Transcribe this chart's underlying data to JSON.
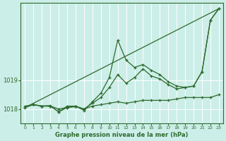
{
  "title": "Graphe pression niveau de la mer (hPa)",
  "background_color": "#cceee8",
  "grid_color": "#ffffff",
  "line_color": "#2d6a2d",
  "xlim": [
    -0.5,
    23.5
  ],
  "ylim": [
    1017.5,
    1021.7
  ],
  "yticks": [
    1018,
    1019
  ],
  "xticks": [
    0,
    1,
    2,
    3,
    4,
    5,
    6,
    7,
    8,
    9,
    10,
    11,
    12,
    13,
    14,
    15,
    16,
    17,
    18,
    19,
    20,
    21,
    22,
    23
  ],
  "series": [
    {
      "x": [
        0,
        23
      ],
      "y": [
        1018.05,
        1021.5
      ]
    },
    {
      "x": [
        0,
        1,
        2,
        3,
        4,
        5,
        6,
        7,
        8,
        9,
        10,
        11,
        12,
        13,
        14,
        15,
        16,
        17,
        18,
        19,
        20,
        21,
        22,
        23
      ],
      "y": [
        1018.05,
        1018.15,
        1018.1,
        1018.1,
        1018.0,
        1018.05,
        1018.08,
        1018.0,
        1018.1,
        1018.15,
        1018.2,
        1018.25,
        1018.2,
        1018.25,
        1018.3,
        1018.3,
        1018.3,
        1018.3,
        1018.35,
        1018.4,
        1018.4,
        1018.4,
        1018.4,
        1018.5
      ]
    },
    {
      "x": [
        0,
        1,
        2,
        3,
        4,
        5,
        6,
        7,
        8,
        9,
        10,
        11,
        12,
        13,
        14,
        15,
        16,
        17,
        18,
        19,
        20,
        21,
        22,
        23
      ],
      "y": [
        1018.1,
        1018.15,
        1018.1,
        1018.1,
        1017.9,
        1018.05,
        1018.1,
        1017.95,
        1018.25,
        1018.55,
        1019.1,
        1020.4,
        1019.7,
        1019.45,
        1019.55,
        1019.35,
        1019.2,
        1018.95,
        1018.8,
        1018.75,
        1018.8,
        1019.3,
        1021.1,
        1021.5
      ]
    },
    {
      "x": [
        1,
        2,
        3,
        4,
        5,
        6,
        7,
        8,
        9,
        10,
        11,
        12,
        13,
        14,
        15,
        16,
        17,
        18,
        19,
        20,
        21,
        22,
        23
      ],
      "y": [
        1018.15,
        1018.1,
        1018.12,
        1017.9,
        1018.1,
        1018.1,
        1018.0,
        1018.2,
        1018.4,
        1018.75,
        1019.2,
        1018.9,
        1019.1,
        1019.4,
        1019.15,
        1019.05,
        1018.85,
        1018.7,
        1018.75,
        1018.8,
        1019.3,
        1021.1,
        1021.5
      ]
    }
  ]
}
